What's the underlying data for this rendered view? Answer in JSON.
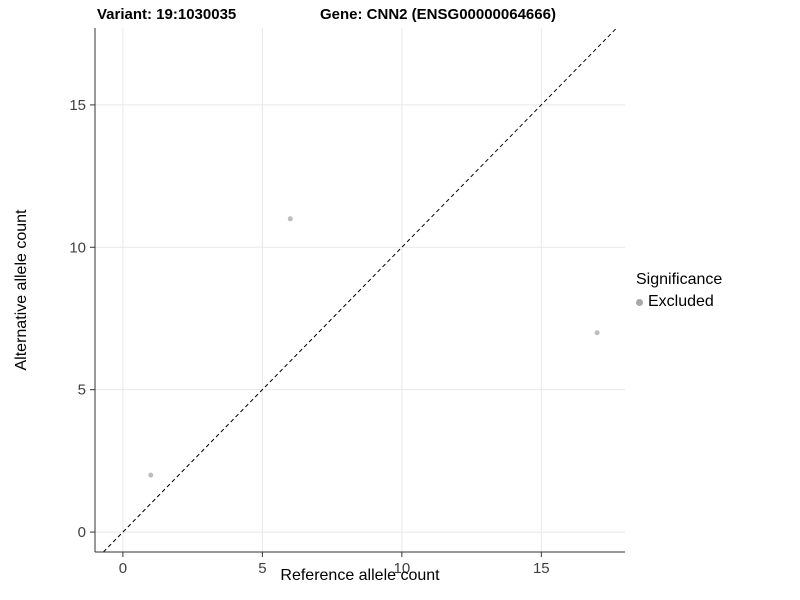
{
  "chart_data": {
    "type": "scatter",
    "title_left": "Variant: 19:1030035",
    "title_right": "Gene: CNN2 (ENSG00000064666)",
    "xlabel": "Reference allele count",
    "ylabel": "Alternative allele count",
    "xlim": [
      -1,
      18
    ],
    "ylim": [
      -0.7,
      17.7
    ],
    "xticks": [
      0,
      5,
      10,
      15
    ],
    "yticks": [
      0,
      5,
      10,
      15
    ],
    "grid": true,
    "points": [
      {
        "x": 1,
        "y": 2,
        "series": "Excluded"
      },
      {
        "x": 6,
        "y": 11,
        "series": "Excluded"
      },
      {
        "x": 17,
        "y": 7,
        "series": "Excluded"
      }
    ],
    "identity_line": {
      "style": "dashed",
      "from": [
        -0.7,
        -0.7
      ],
      "to": [
        17.7,
        17.7
      ],
      "color": "#000000"
    },
    "legend": {
      "title": "Significance",
      "position": "right",
      "entries": [
        {
          "label": "Excluded",
          "color": "#a8a8a8"
        }
      ]
    },
    "colors": {
      "point": "#bdbdbd",
      "grid": "#e8e8e8",
      "axis": "#333333",
      "tick_label": "#404040",
      "background": "#ffffff"
    }
  }
}
